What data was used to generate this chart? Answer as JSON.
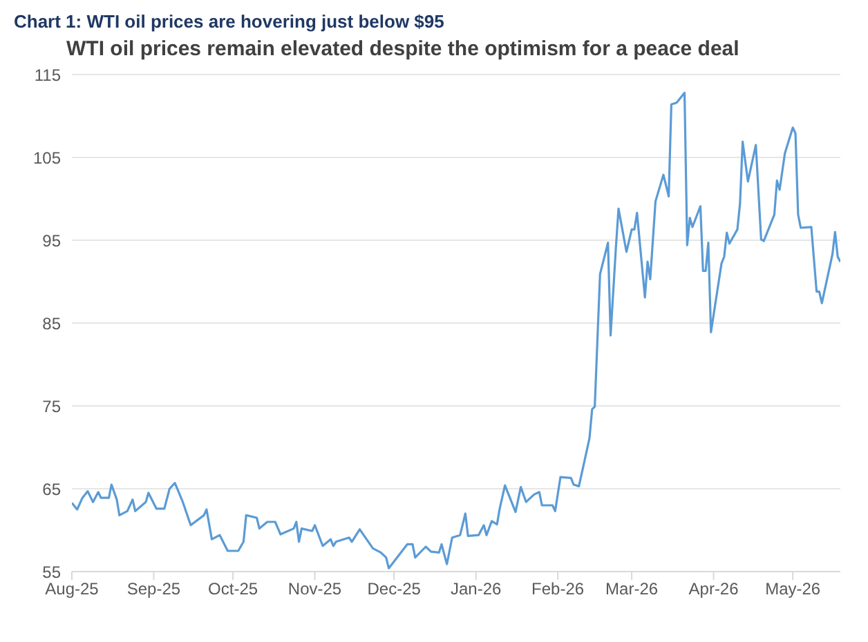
{
  "chart_data": {
    "type": "line",
    "title": "Chart 1: WTI oil prices are hovering just below $95",
    "subtitle": "WTI oil prices remain elevated despite the optimism for a peace deal",
    "x": [
      "2025-08-01",
      "2025-08-03",
      "2025-08-05",
      "2025-08-07",
      "2025-08-09",
      "2025-08-11",
      "2025-08-12",
      "2025-08-15",
      "2025-08-16",
      "2025-08-18",
      "2025-08-19",
      "2025-08-22",
      "2025-08-24",
      "2025-08-25",
      "2025-08-29",
      "2025-08-30",
      "2025-09-02",
      "2025-09-05",
      "2025-09-07",
      "2025-09-09",
      "2025-09-12",
      "2025-09-15",
      "2025-09-20",
      "2025-09-21",
      "2025-09-23",
      "2025-09-26",
      "2025-09-29",
      "2025-10-03",
      "2025-10-05",
      "2025-10-06",
      "2025-10-10",
      "2025-10-11",
      "2025-10-14",
      "2025-10-17",
      "2025-10-19",
      "2025-10-24",
      "2025-10-25",
      "2025-10-26",
      "2025-10-27",
      "2025-10-31",
      "2025-11-01",
      "2025-11-04",
      "2025-11-07",
      "2025-11-08",
      "2025-11-09",
      "2025-11-14",
      "2025-11-15",
      "2025-11-18",
      "2025-11-23",
      "2025-11-26",
      "2025-11-28",
      "2025-11-29",
      "2025-12-06",
      "2025-12-08",
      "2025-12-09",
      "2025-12-13",
      "2025-12-15",
      "2025-12-18",
      "2025-12-19",
      "2025-12-21",
      "2025-12-23",
      "2025-12-26",
      "2025-12-28",
      "2025-12-29",
      "2026-01-02",
      "2026-01-04",
      "2026-01-05",
      "2026-01-07",
      "2026-01-09",
      "2026-01-10",
      "2026-01-12",
      "2026-01-16",
      "2026-01-18",
      "2026-01-20",
      "2026-01-23",
      "2026-01-25",
      "2026-01-26",
      "2026-01-30",
      "2026-01-31",
      "2026-02-02",
      "2026-02-06",
      "2026-02-07",
      "2026-02-09",
      "2026-02-13",
      "2026-02-14",
      "2026-02-15",
      "2026-02-17",
      "2026-02-20",
      "2026-02-21",
      "2026-02-23",
      "2026-02-24",
      "2026-02-27",
      "2026-03-01",
      "2026-03-02",
      "2026-03-03",
      "2026-03-06",
      "2026-03-07",
      "2026-03-08",
      "2026-03-10",
      "2026-03-13",
      "2026-03-15",
      "2026-03-16",
      "2026-03-18",
      "2026-03-21",
      "2026-03-22",
      "2026-03-23",
      "2026-03-24",
      "2026-03-27",
      "2026-03-28",
      "2026-03-29",
      "2026-03-30",
      "2026-03-31",
      "2026-04-04",
      "2026-04-05",
      "2026-04-06",
      "2026-04-07",
      "2026-04-10",
      "2026-04-11",
      "2026-04-12",
      "2026-04-14",
      "2026-04-17",
      "2026-04-19",
      "2026-04-20",
      "2026-04-24",
      "2026-04-25",
      "2026-04-26",
      "2026-04-28",
      "2026-05-01",
      "2026-05-02",
      "2026-05-03",
      "2026-05-04",
      "2026-05-08",
      "2026-05-10",
      "2026-05-11",
      "2026-05-12",
      "2026-05-16",
      "2026-05-17",
      "2026-05-18",
      "2026-05-19"
    ],
    "series": [
      {
        "color": "#5b9bd5",
        "values": [
          63.3,
          62.5,
          63.9,
          64.7,
          63.4,
          64.6,
          63.9,
          63.9,
          65.5,
          63.7,
          61.8,
          62.3,
          63.7,
          62.3,
          63.4,
          64.5,
          62.6,
          62.6,
          65.0,
          65.7,
          63.4,
          60.6,
          61.8,
          62.5,
          58.9,
          59.4,
          57.5,
          57.5,
          58.6,
          61.8,
          61.5,
          60.2,
          61.0,
          61.0,
          59.5,
          60.2,
          61.0,
          58.6,
          60.2,
          59.9,
          60.6,
          58.1,
          58.9,
          58.1,
          58.6,
          59.1,
          58.6,
          60.1,
          57.8,
          57.3,
          56.7,
          55.4,
          58.3,
          58.3,
          56.7,
          58.0,
          57.4,
          57.3,
          58.3,
          55.9,
          59.1,
          59.4,
          62.0,
          59.3,
          59.4,
          60.6,
          59.4,
          61.1,
          60.7,
          62.6,
          65.4,
          62.2,
          65.2,
          63.4,
          64.3,
          64.6,
          63.0,
          63.0,
          62.3,
          66.4,
          66.3,
          65.5,
          65.3,
          71.1,
          74.6,
          74.9,
          90.9,
          94.7,
          83.5,
          94.1,
          98.8,
          93.6,
          96.3,
          96.3,
          98.3,
          88.1,
          92.4,
          90.3,
          99.7,
          102.9,
          100.3,
          111.4,
          111.6,
          112.8,
          94.4,
          97.7,
          96.6,
          99.1,
          91.3,
          91.3,
          94.7,
          83.9,
          92.2,
          93.0,
          95.9,
          94.6,
          96.3,
          99.4,
          106.9,
          102.1,
          106.5,
          95.1,
          94.9,
          98.1,
          102.2,
          101.1,
          105.5,
          108.6,
          107.9,
          98.1,
          96.5,
          96.6,
          88.8,
          88.8,
          87.4,
          93.3,
          96.0,
          93.0,
          92.4
        ]
      }
    ],
    "xlim": [
      "2025-08-01",
      "2026-05-19"
    ],
    "xticks": [
      {
        "value": "2025-08-01",
        "label": "Aug-25"
      },
      {
        "value": "2025-09-01",
        "label": "Sep-25"
      },
      {
        "value": "2025-10-01",
        "label": "Oct-25"
      },
      {
        "value": "2025-11-01",
        "label": "Nov-25"
      },
      {
        "value": "2025-12-01",
        "label": "Dec-25"
      },
      {
        "value": "2026-01-01",
        "label": "Jan-26"
      },
      {
        "value": "2026-02-01",
        "label": "Feb-26"
      },
      {
        "value": "2026-03-01",
        "label": "Mar-26"
      },
      {
        "value": "2026-04-01",
        "label": "Apr-26"
      },
      {
        "value": "2026-05-01",
        "label": "May-26"
      }
    ],
    "ylim": [
      55,
      115
    ],
    "yticks": [
      55,
      65,
      75,
      85,
      95,
      105,
      115
    ],
    "grid": "y",
    "marker": "none",
    "line_style": "solid"
  }
}
